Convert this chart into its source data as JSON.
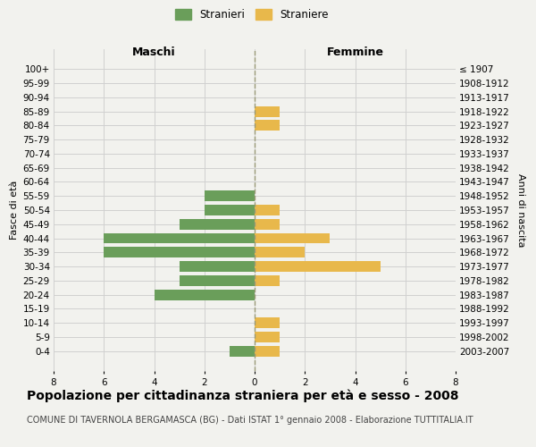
{
  "age_groups": [
    "100+",
    "95-99",
    "90-94",
    "85-89",
    "80-84",
    "75-79",
    "70-74",
    "65-69",
    "60-64",
    "55-59",
    "50-54",
    "45-49",
    "40-44",
    "35-39",
    "30-34",
    "25-29",
    "20-24",
    "15-19",
    "10-14",
    "5-9",
    "0-4"
  ],
  "birth_years": [
    "≤ 1907",
    "1908-1912",
    "1913-1917",
    "1918-1922",
    "1923-1927",
    "1928-1932",
    "1933-1937",
    "1938-1942",
    "1943-1947",
    "1948-1952",
    "1953-1957",
    "1958-1962",
    "1963-1967",
    "1968-1972",
    "1973-1977",
    "1978-1982",
    "1983-1987",
    "1988-1992",
    "1993-1997",
    "1998-2002",
    "2003-2007"
  ],
  "males": [
    0,
    0,
    0,
    0,
    0,
    0,
    0,
    0,
    0,
    2,
    2,
    3,
    6,
    6,
    3,
    3,
    4,
    0,
    0,
    0,
    1
  ],
  "females": [
    0,
    0,
    0,
    1,
    1,
    0,
    0,
    0,
    0,
    0,
    1,
    1,
    3,
    2,
    5,
    1,
    0,
    0,
    1,
    1,
    1
  ],
  "male_color": "#6a9e5a",
  "female_color": "#e8b84b",
  "background_color": "#f2f2ee",
  "grid_color": "#d0d0d0",
  "center_line_color": "#999977",
  "title": "Popolazione per cittadinanza straniera per età e sesso - 2008",
  "subtitle": "COMUNE DI TAVERNOLA BERGAMASCA (BG) - Dati ISTAT 1° gennaio 2008 - Elaborazione TUTTITALIA.IT",
  "ylabel_left": "Fasce di età",
  "ylabel_right": "Anni di nascita",
  "xlabel_left": "Maschi",
  "xlabel_right": "Femmine",
  "legend_male": "Stranieri",
  "legend_female": "Straniere",
  "xlim": 8,
  "title_fontsize": 10,
  "subtitle_fontsize": 7,
  "bar_height": 0.75
}
